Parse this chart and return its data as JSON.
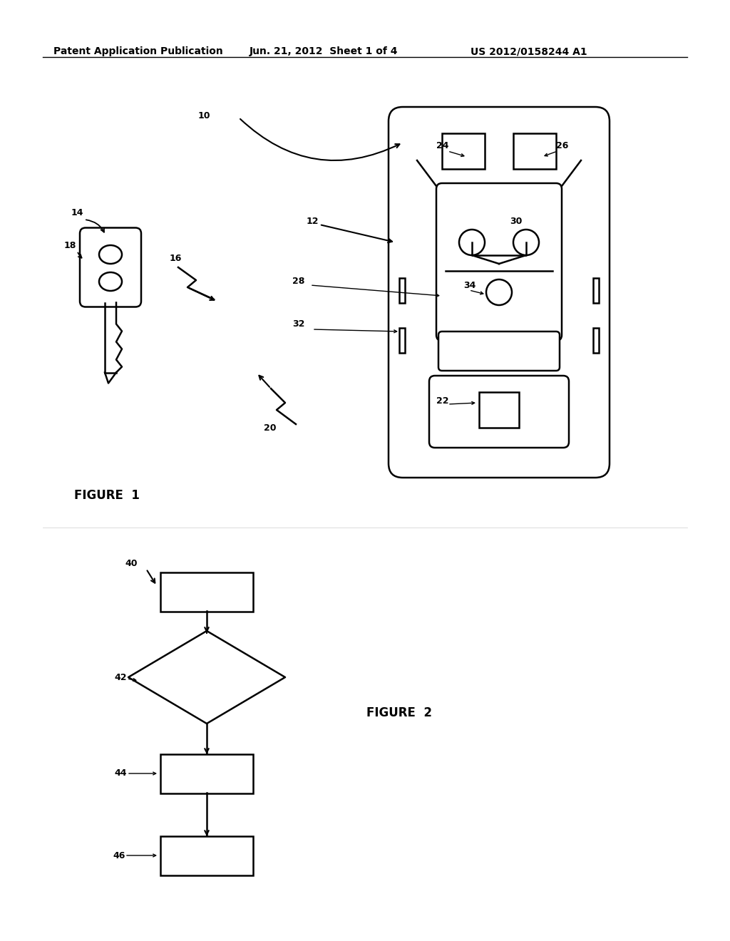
{
  "bg_color": "#ffffff",
  "header_text1": "Patent Application Publication",
  "header_text2": "Jun. 21, 2012  Sheet 1 of 4",
  "header_text3": "US 2012/0158244 A1",
  "figure1_label": "FIGURE  1",
  "figure2_label": "FIGURE  2"
}
